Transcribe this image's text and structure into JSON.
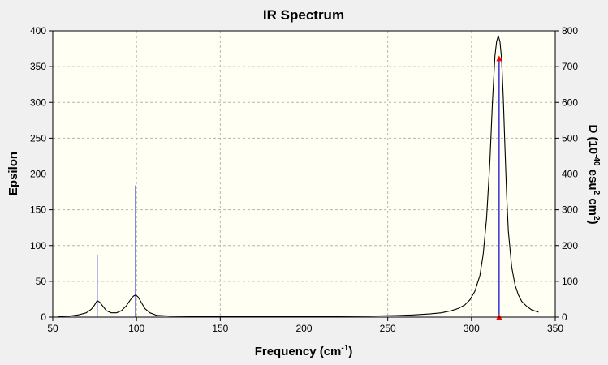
{
  "chart_data": {
    "type": "line",
    "title": "IR Spectrum",
    "xlabel": "Frequency",
    "xlabel_unit": "(cm",
    "xlabel_unit_exp": "-1",
    "xlabel_unit_close": ")",
    "ylabel": "Epsilon",
    "y2label_prefix": "D (10",
    "y2label_exp1": "-40",
    "y2label_mid": " esu",
    "y2label_exp2": "2",
    "y2label_mid2": " cm",
    "y2label_exp3": "2",
    "y2label_close": ")",
    "xlim": [
      50,
      350
    ],
    "ylim": [
      0,
      400
    ],
    "y2lim": [
      0,
      800
    ],
    "xticks": [
      "50",
      "100",
      "150",
      "200",
      "250",
      "300",
      "350"
    ],
    "yticks": [
      "0",
      "50",
      "100",
      "150",
      "200",
      "250",
      "300",
      "350",
      "400"
    ],
    "y2ticks": [
      "0",
      "100",
      "200",
      "300",
      "400",
      "500",
      "600",
      "700",
      "800"
    ],
    "grid": true,
    "colors": {
      "plot_bg": "#fffff4",
      "spectrum": "#000000",
      "sticks": "#0000cc",
      "marker": "#ff0000",
      "grid": "#b4b4b4"
    },
    "spectrum_curve": {
      "x": [
        53,
        60,
        65,
        70,
        73,
        75,
        76.5,
        78,
        80,
        82,
        85,
        88,
        91,
        94,
        96,
        98,
        99.5,
        101,
        103,
        105,
        108,
        112,
        120,
        140,
        160,
        180,
        200,
        220,
        240,
        255,
        265,
        275,
        282,
        288,
        292,
        296,
        299,
        302,
        305,
        307,
        309,
        311,
        312.5,
        314,
        315,
        316,
        317,
        318,
        319,
        320,
        321,
        322,
        324,
        326,
        328,
        330,
        333,
        336,
        340
      ],
      "y": [
        1,
        1.5,
        3,
        6,
        11,
        17,
        23,
        21,
        15,
        9,
        6,
        6,
        9,
        16,
        23,
        29,
        31,
        28,
        20,
        12,
        6,
        2.5,
        1.5,
        1,
        1,
        1,
        1,
        1.2,
        1.5,
        2.2,
        3,
        4.5,
        6,
        9,
        12,
        17,
        24,
        36,
        58,
        88,
        138,
        218,
        300,
        365,
        385,
        393,
        385,
        360,
        305,
        235,
        170,
        120,
        70,
        45,
        31,
        22,
        15,
        10,
        7
      ]
    },
    "sticks": [
      {
        "x": 76.5,
        "epsilon": 87
      },
      {
        "x": 99.5,
        "epsilon": 184
      },
      {
        "x": 316.5,
        "epsilon": 361
      }
    ],
    "markers": [
      {
        "x": 316.5,
        "epsilon": 361
      },
      {
        "x": 316.5,
        "epsilon": 0
      }
    ]
  }
}
